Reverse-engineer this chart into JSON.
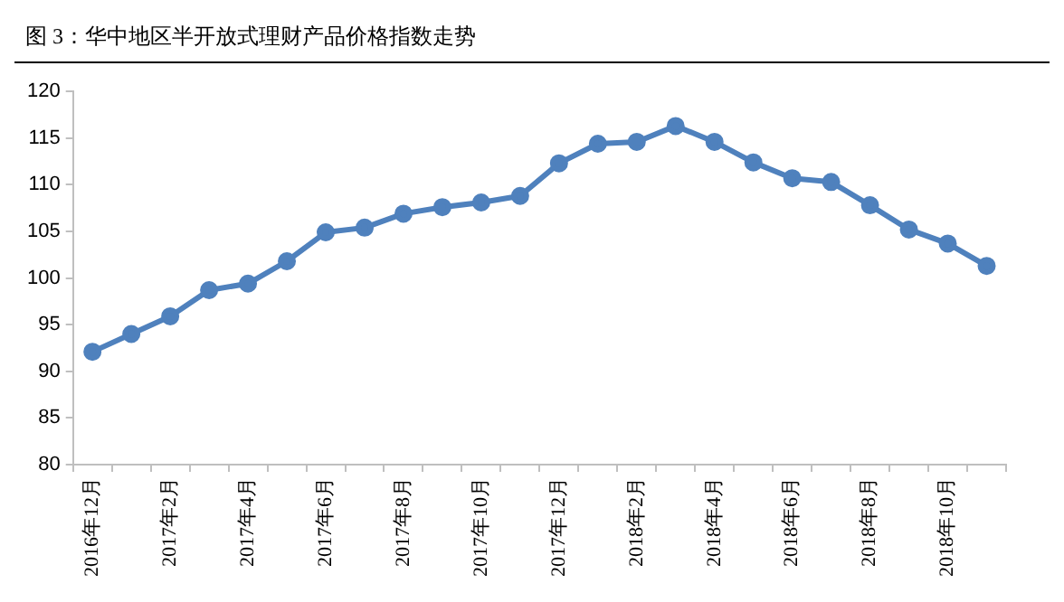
{
  "chart_data": {
    "type": "line",
    "title": "图 3：华中地区半开放式理财产品价格指数走势",
    "categories": [
      "2016年12月",
      null,
      "2017年2月",
      null,
      "2017年4月",
      null,
      "2017年6月",
      null,
      "2017年8月",
      null,
      "2017年10月",
      null,
      "2017年12月",
      null,
      "2018年2月",
      null,
      "2018年4月",
      null,
      "2018年6月",
      null,
      "2018年8月",
      null,
      "2018年10月",
      null
    ],
    "series": [
      {
        "color": "#4f81bd",
        "values": [
          92.1,
          94.0,
          95.9,
          98.7,
          99.4,
          101.8,
          104.9,
          105.4,
          106.9,
          107.6,
          108.1,
          108.8,
          112.3,
          114.4,
          114.6,
          116.3,
          114.6,
          112.4,
          110.7,
          110.3,
          107.8,
          105.2,
          103.7,
          101.3
        ]
      }
    ],
    "ylim": [
      80,
      120
    ],
    "yticks": [
      80,
      85,
      90,
      95,
      100,
      105,
      110,
      115,
      120
    ],
    "grid": false,
    "legend": false,
    "marker": "circle",
    "line_style": "solid"
  }
}
